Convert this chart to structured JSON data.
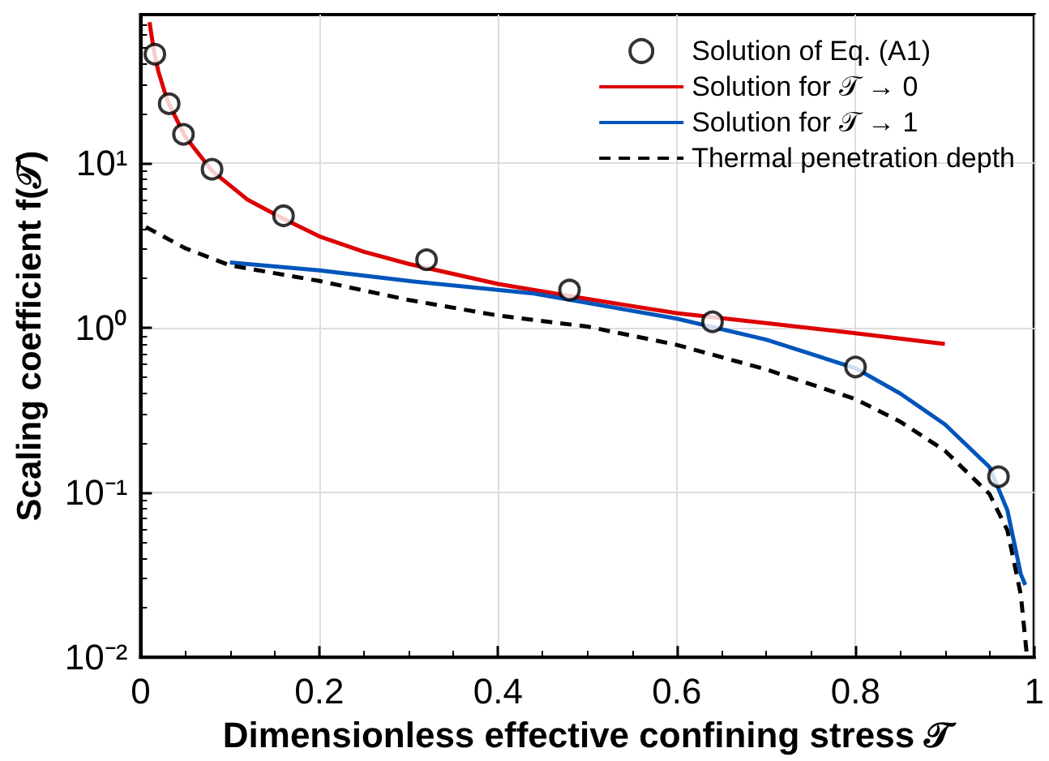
{
  "chart_data": {
    "type": "line",
    "xlabel": "Dimensionless effective confining stress 𝒯",
    "ylabel": "Scaling coefficient f(𝒯)",
    "xlim": [
      0,
      1
    ],
    "xticks": [
      0,
      0.2,
      0.4,
      0.6,
      0.8,
      1
    ],
    "ylim": [
      0.01,
      80
    ],
    "yticks": [
      {
        "value": 0.01,
        "label": "10⁻²"
      },
      {
        "value": 0.1,
        "label": "10⁻¹"
      },
      {
        "value": 1,
        "label": "10⁰"
      },
      {
        "value": 10,
        "label": "10¹"
      }
    ],
    "log": "y",
    "grid": true,
    "legend": "top right",
    "series": [
      {
        "name": "Solution of Eq. (A1)",
        "type": "scatter",
        "marker": "circle",
        "color": "#000000",
        "x": [
          0.016,
          0.032,
          0.048,
          0.08,
          0.16,
          0.32,
          0.48,
          0.64,
          0.8,
          0.96
        ],
        "values": [
          46,
          23,
          15,
          9.2,
          4.8,
          2.6,
          1.7,
          1.09,
          0.58,
          0.125
        ]
      },
      {
        "name": "Solution for 𝒯 → 0",
        "marker": "none",
        "line_style": "solid",
        "color": "#dd0000",
        "x": [
          0.01,
          0.015,
          0.02,
          0.03,
          0.05,
          0.08,
          0.12,
          0.16,
          0.2,
          0.25,
          0.3,
          0.4,
          0.5,
          0.6,
          0.7,
          0.8,
          0.9
        ],
        "values": [
          72,
          48,
          36,
          24,
          14.5,
          9,
          6,
          4.6,
          3.6,
          2.9,
          2.45,
          1.85,
          1.5,
          1.23,
          1.07,
          0.93,
          0.8
        ]
      },
      {
        "name": "Solution for 𝒯 → 1",
        "marker": "none",
        "line_style": "solid",
        "color": "#0055bb",
        "x": [
          0.1,
          0.2,
          0.3,
          0.44,
          0.6,
          0.7,
          0.8,
          0.85,
          0.9,
          0.95,
          0.97,
          0.985,
          0.99
        ],
        "values": [
          2.5,
          2.24,
          1.93,
          1.62,
          1.14,
          0.85,
          0.57,
          0.4,
          0.26,
          0.143,
          0.078,
          0.032,
          0.0275
        ]
      },
      {
        "name": "Thermal penetration depth",
        "marker": "none",
        "line_style": "dashed",
        "color": "#000000",
        "x": [
          0.006,
          0.05,
          0.1,
          0.2,
          0.3,
          0.4,
          0.5,
          0.6,
          0.7,
          0.8,
          0.85,
          0.9,
          0.95,
          0.97,
          0.985,
          0.992
        ],
        "values": [
          4.1,
          3.05,
          2.4,
          1.93,
          1.48,
          1.19,
          1.02,
          0.79,
          0.56,
          0.37,
          0.27,
          0.18,
          0.098,
          0.059,
          0.024,
          0.01
        ]
      }
    ]
  }
}
